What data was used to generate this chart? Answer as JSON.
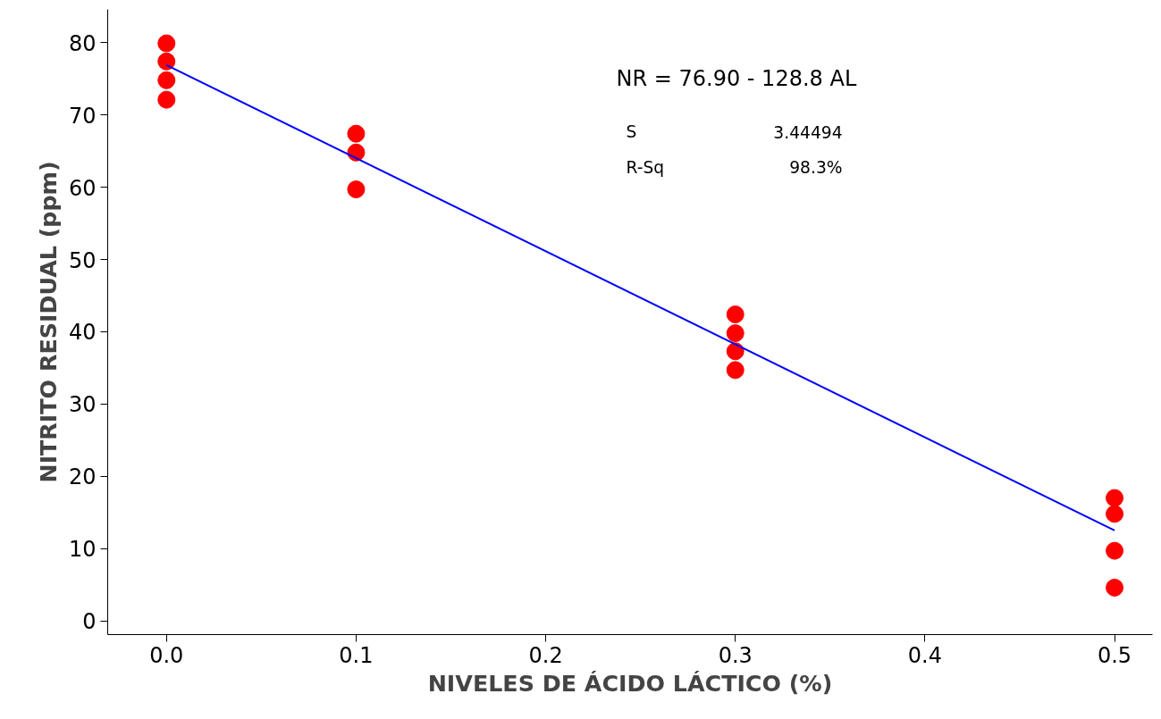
{
  "chart_data": {
    "type": "scatter",
    "xlabel": "NIVELES DE ÁCIDO LÁCTICO (%)",
    "ylabel": "NITRITO RESIDUAL (ppm)",
    "xlim": [
      -0.031,
      0.52
    ],
    "ylim": [
      -1.9,
      84.6
    ],
    "xticks": [
      {
        "value": 0,
        "label": "0.0"
      },
      0.1,
      0.2,
      0.3,
      0.4,
      0.5
    ],
    "yticks": [
      0,
      10,
      20,
      30,
      40,
      50,
      60,
      70,
      80
    ],
    "grid": false,
    "series": [
      {
        "marker": "circle",
        "color": "#ff0000",
        "x": [
          0,
          0,
          0,
          0,
          0.1,
          0.1,
          0.1,
          0.3,
          0.3,
          0.3,
          0.3,
          0.5,
          0.5,
          0.5,
          0.5
        ],
        "values": [
          79.9,
          77.4,
          74.8,
          72.1,
          67.4,
          64.8,
          59.7,
          42.4,
          39.8,
          37.3,
          34.7,
          17.0,
          14.8,
          9.7,
          4.6
        ]
      },
      {
        "type": "line",
        "color": "#0000ff",
        "x": [
          0,
          0.5
        ],
        "values": [
          76.9,
          12.5
        ],
        "line_style": "solid"
      }
    ],
    "annotations": [
      "NR =  76.90 - 128.8 AL",
      "S",
      "3.44494",
      "R-Sq",
      "98.3%"
    ]
  }
}
